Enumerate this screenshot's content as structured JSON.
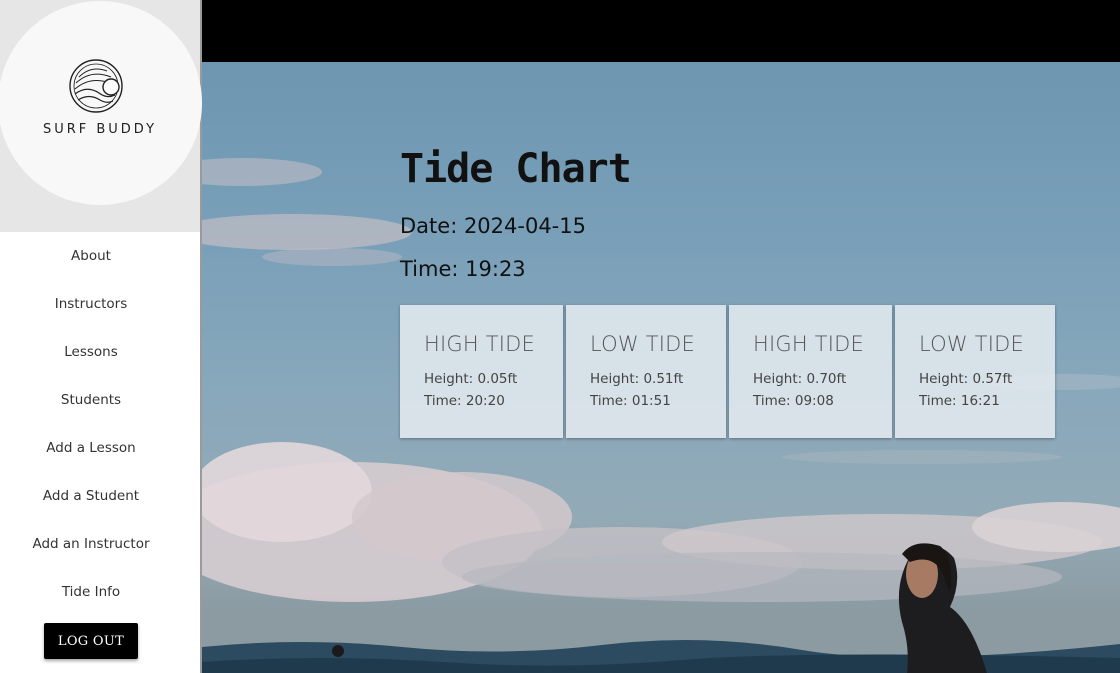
{
  "brand": {
    "name": "SURF BUDDY",
    "logo_icon": "wave-sun-logo-icon"
  },
  "sidebar": {
    "items": [
      {
        "label": "About"
      },
      {
        "label": "Instructors"
      },
      {
        "label": "Lessons"
      },
      {
        "label": "Students"
      },
      {
        "label": "Add a Lesson"
      },
      {
        "label": "Add a Student"
      },
      {
        "label": "Add an Instructor"
      },
      {
        "label": "Tide Info"
      }
    ],
    "logout_label": "LOG OUT"
  },
  "main": {
    "title": "Tide Chart",
    "date_text": "Date: 2024-04-15",
    "time_text": "Time: 19:23",
    "tides": [
      {
        "type": "HIGH TIDE",
        "height": "Height: 0.05ft",
        "time": "Time: 20:20"
      },
      {
        "type": "LOW TIDE",
        "height": "Height: 0.51ft",
        "time": "Time: 01:51"
      },
      {
        "type": "HIGH TIDE",
        "height": "Height: 0.70ft",
        "time": "Time: 09:08"
      },
      {
        "type": "LOW TIDE",
        "height": "Height: 0.57ft",
        "time": "Time: 16:21"
      }
    ]
  },
  "colors": {
    "topbar": "#000000",
    "sidebar_bg": "#ffffff",
    "logo_bg": "#e6e6e6",
    "button_bg": "#000000"
  }
}
